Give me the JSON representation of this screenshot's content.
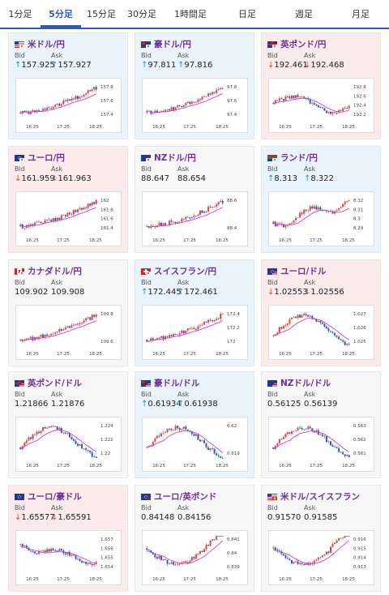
{
  "tabs": [
    {
      "label": "1分足",
      "active": false
    },
    {
      "label": "5分足",
      "active": true
    },
    {
      "label": "15分足",
      "active": false
    },
    {
      "label": "30分足",
      "active": false
    },
    {
      "label": "1時間足",
      "active": false
    },
    {
      "label": "日足",
      "active": false
    },
    {
      "label": "週足",
      "active": false
    },
    {
      "label": "月足",
      "active": false
    }
  ],
  "labels": {
    "bid": "Bid",
    "ask": "Ask"
  },
  "colors": {
    "up_bg": "#e9f4fc",
    "down_bg": "#fcebeb",
    "candle_up": "#e0463c",
    "candle_down": "#2a5dbb",
    "ma": "#d23cd2",
    "title": "#6b2fa0"
  },
  "cards": [
    {
      "name": "米ドル/円",
      "flag": "us-jp",
      "trend": "up",
      "bid": "157.925",
      "ask": "157.927",
      "xticks": [
        "16:25",
        "17:25",
        "18:25"
      ],
      "yticks": [
        "157.8",
        "157.6",
        "157.4"
      ]
    },
    {
      "name": "豪ドル/円",
      "flag": "au-jp",
      "trend": "up",
      "bid": "97.811",
      "ask": "97.816",
      "xticks": [
        "16:25",
        "17:25",
        "18:25"
      ],
      "yticks": [
        "97.8",
        "97.6",
        "97.4"
      ]
    },
    {
      "name": "英ポンド/円",
      "flag": "gb-jp",
      "trend": "down",
      "bid": "192.461",
      "ask": "192.468",
      "xticks": [
        "16:25",
        "17:25",
        "18:25"
      ],
      "yticks": [
        "192.8",
        "192.6",
        "192.4",
        "192.2"
      ]
    },
    {
      "name": "ユーロ/円",
      "flag": "eu-jp",
      "trend": "down",
      "bid": "161.959",
      "ask": "161.963",
      "xticks": [
        "16:25",
        "17:25",
        "18:25"
      ],
      "yticks": [
        "162",
        "161.8",
        "161.6",
        "161.4"
      ]
    },
    {
      "name": "NZドル/円",
      "flag": "nz-jp",
      "trend": "flat",
      "bid": "88.647",
      "ask": "88.654",
      "xticks": [
        "16:25",
        "17:25",
        "18:25"
      ],
      "yticks": [
        "88.6",
        "88.4"
      ]
    },
    {
      "name": "ランド/円",
      "flag": "za-jp",
      "trend": "up",
      "bid": "8.313",
      "ask": "8.322",
      "xticks": [
        "16:25",
        "17:25",
        "18:25"
      ],
      "yticks": [
        "8.32",
        "8.31",
        "8.3",
        "8.29"
      ]
    },
    {
      "name": "カナダドル/円",
      "flag": "ca-jp",
      "trend": "flat",
      "bid": "109.902",
      "ask": "109.908",
      "xticks": [
        "16:25",
        "17:25",
        "18:25"
      ],
      "yticks": [
        "109.8",
        "109.6"
      ]
    },
    {
      "name": "スイスフラン/円",
      "flag": "ch-jp",
      "trend": "up",
      "bid": "172.445",
      "ask": "172.461",
      "xticks": [
        "16:25",
        "17:25",
        "18:25"
      ],
      "yticks": [
        "172.4",
        "172.2",
        "172"
      ]
    },
    {
      "name": "ユーロ/ドル",
      "flag": "eu-us",
      "trend": "down",
      "bid": "1.02553",
      "ask": "1.02556",
      "xticks": [
        "16:25",
        "17:25",
        "18:25"
      ],
      "yticks": [
        "1.027",
        "1.026",
        "1.025"
      ]
    },
    {
      "name": "英ポンド/ドル",
      "flag": "gb-us",
      "trend": "flat",
      "bid": "1.21866",
      "ask": "1.21876",
      "xticks": [
        "16:25",
        "17:25",
        "18:25"
      ],
      "yticks": [
        "1.224",
        "1.222",
        "1.22"
      ]
    },
    {
      "name": "豪ドル/ドル",
      "flag": "au-us",
      "trend": "up",
      "bid": "0.61934",
      "ask": "0.61938",
      "xticks": [
        "16:25",
        "17:25",
        "18:25"
      ],
      "yticks": [
        "0.62",
        "0.619"
      ]
    },
    {
      "name": "NZドル/ドル",
      "flag": "nz-us",
      "trend": "flat",
      "bid": "0.56125",
      "ask": "0.56139",
      "xticks": [
        "16:25",
        "17:25",
        "18:25"
      ],
      "yticks": [
        "0.563",
        "0.562",
        "0.561"
      ]
    },
    {
      "name": "ユーロ/豪ドル",
      "flag": "eu-au",
      "trend": "down",
      "bid": "1.65577",
      "ask": "1.65591",
      "xticks": [
        "16:25",
        "17:25",
        "18:25"
      ],
      "yticks": [
        "1.657",
        "1.656",
        "1.655",
        "1.654"
      ]
    },
    {
      "name": "ユーロ/英ポンド",
      "flag": "eu-gb",
      "trend": "flat",
      "bid": "0.84148",
      "ask": "0.84156",
      "xticks": [
        "16:25",
        "17:25",
        "18:25"
      ],
      "yticks": [
        "0.841",
        "0.84",
        "0.839"
      ]
    },
    {
      "name": "米ドル/スイスフラン",
      "flag": "us-ch",
      "trend": "flat",
      "bid": "0.91570",
      "ask": "0.91585",
      "xticks": [
        "16:25",
        "17:25",
        "18:25"
      ],
      "yticks": [
        "0.916",
        "0.915",
        "0.914",
        "0.913"
      ]
    }
  ]
}
